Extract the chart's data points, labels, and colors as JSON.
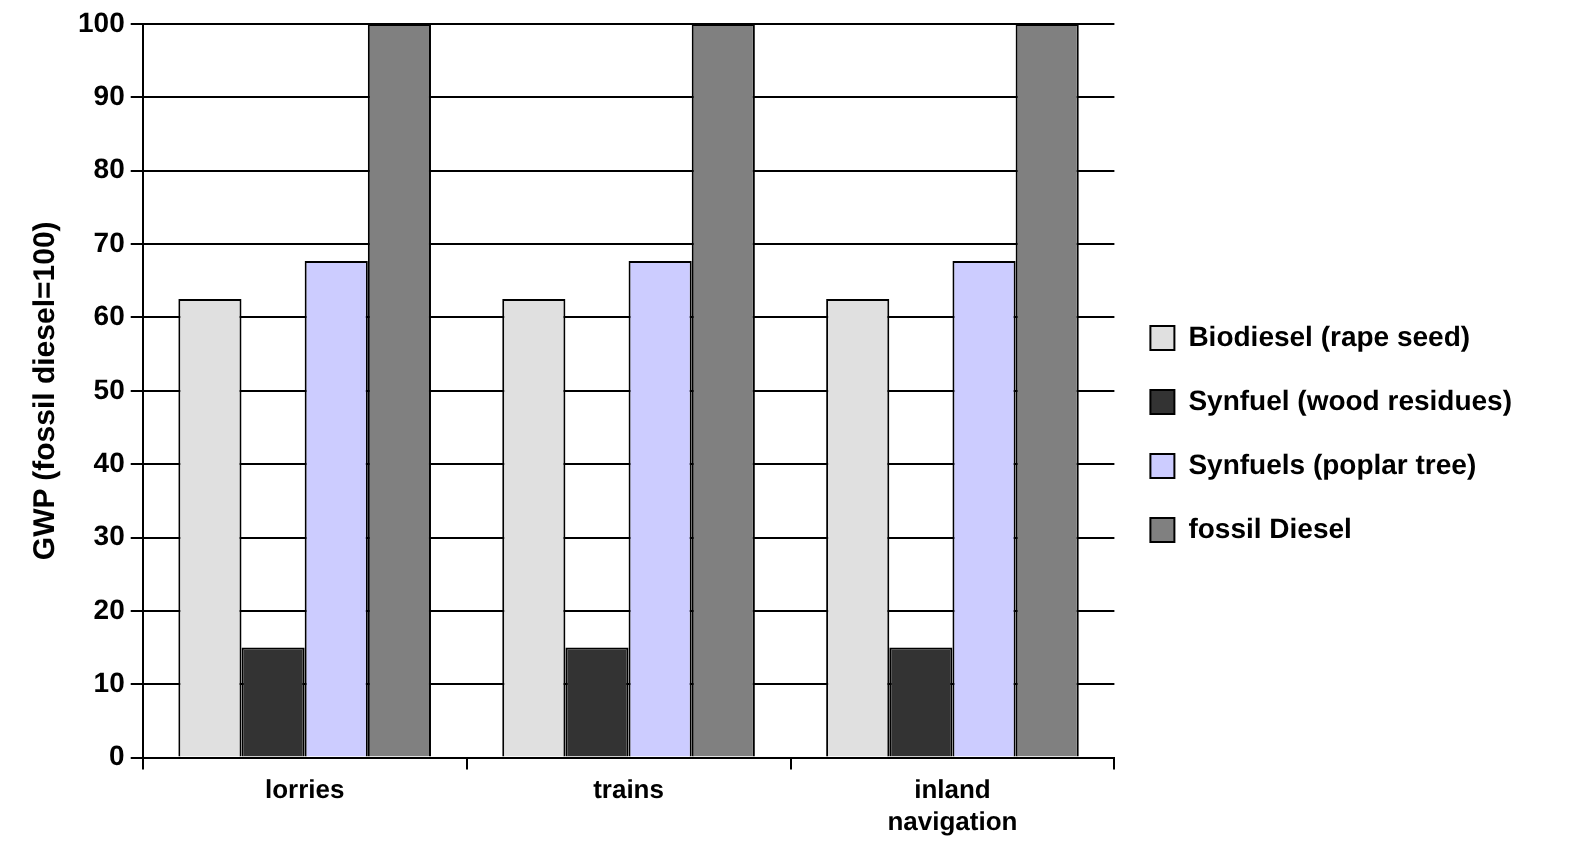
{
  "chart_data": {
    "type": "bar",
    "ylabel": "GWP (fossil diesel=100)",
    "categories": [
      "lorries",
      "trains",
      "inland navigation"
    ],
    "series": [
      {
        "name": "Biodiesel (rape seed)",
        "color": "#e0e0e0",
        "values": [
          62.5,
          62.5,
          62.5
        ]
      },
      {
        "name": "Synfuel (wood residues)",
        "color": "#333333",
        "values": [
          15,
          15,
          15
        ]
      },
      {
        "name": "Synfuels (poplar tree)",
        "color": "#ccccff",
        "values": [
          67.7,
          67.7,
          67.7
        ]
      },
      {
        "name": "fossil Diesel",
        "color": "#808080",
        "values": [
          100,
          100,
          100
        ]
      }
    ],
    "ylim": [
      0,
      100
    ],
    "yticks": [
      0,
      10,
      20,
      30,
      40,
      50,
      60,
      70,
      80,
      90,
      100
    ],
    "grid": "y",
    "legend": "right"
  }
}
